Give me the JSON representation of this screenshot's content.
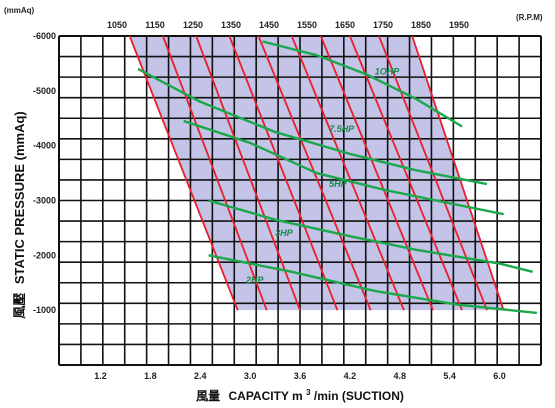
{
  "chart_data": {
    "type": "line",
    "y_unit_label": "(mmAq)",
    "rpm_unit_label": "(R.P.M)",
    "ylabel_prefix": "風壓",
    "ylabel": "STATIC PRESSURE (mmAq)",
    "xlabel_prefix": "風量",
    "xlabel": "CAPACITY m",
    "xlabel_sup": "3",
    "xlabel_suffix": "/min (SUCTION)",
    "xlim": [
      0.7,
      6.5
    ],
    "ylim": [
      0,
      -6000
    ],
    "x_ticks": [
      "1.2",
      "1.8",
      "2.4",
      "3.0",
      "3.6",
      "4.2",
      "4.8",
      "5.4",
      "6.0"
    ],
    "y_ticks": [
      "-6000",
      "-5000",
      "-4000",
      "-3000",
      "-2000",
      "-1000"
    ],
    "grid": true,
    "rpm_series": [
      {
        "name": "1050",
        "points": [
          [
            1.55,
            -6000
          ],
          [
            2.85,
            -1000
          ]
        ]
      },
      {
        "name": "1150",
        "points": [
          [
            1.95,
            -6000
          ],
          [
            3.2,
            -1000
          ]
        ]
      },
      {
        "name": "1250",
        "points": [
          [
            2.35,
            -6000
          ],
          [
            3.6,
            -1000
          ]
        ]
      },
      {
        "name": "1350",
        "points": [
          [
            2.75,
            -6000
          ],
          [
            4.05,
            -1000
          ]
        ]
      },
      {
        "name": "1450",
        "points": [
          [
            3.1,
            -6000
          ],
          [
            4.45,
            -1000
          ]
        ]
      },
      {
        "name": "1550",
        "points": [
          [
            3.5,
            -6000
          ],
          [
            4.85,
            -1000
          ]
        ]
      },
      {
        "name": "1650",
        "points": [
          [
            3.85,
            -6000
          ],
          [
            5.2,
            -1000
          ]
        ]
      },
      {
        "name": "1750",
        "points": [
          [
            4.2,
            -6000
          ],
          [
            5.55,
            -1000
          ]
        ]
      },
      {
        "name": "1850",
        "points": [
          [
            4.55,
            -6000
          ],
          [
            5.85,
            -1000
          ]
        ]
      },
      {
        "name": "1950",
        "points": [
          [
            4.95,
            -6000
          ],
          [
            6.05,
            -1000
          ]
        ]
      }
    ],
    "hp_series": [
      {
        "name": "1OHP",
        "points": [
          [
            3.15,
            -5900
          ],
          [
            3.8,
            -5650
          ],
          [
            4.4,
            -5300
          ],
          [
            5.0,
            -4850
          ],
          [
            5.55,
            -4350
          ]
        ]
      },
      {
        "name": "7.5HP",
        "points": [
          [
            1.65,
            -5400
          ],
          [
            2.4,
            -4800
          ],
          [
            3.3,
            -4250
          ],
          [
            4.2,
            -3850
          ],
          [
            5.0,
            -3550
          ],
          [
            5.85,
            -3300
          ]
        ]
      },
      {
        "name": "5HP",
        "points": [
          [
            2.2,
            -4450
          ],
          [
            3.0,
            -4050
          ],
          [
            3.8,
            -3500
          ],
          [
            4.6,
            -3200
          ],
          [
            5.4,
            -2950
          ],
          [
            6.05,
            -2750
          ]
        ]
      },
      {
        "name": "3HP",
        "points": [
          [
            2.5,
            -3000
          ],
          [
            3.3,
            -2650
          ],
          [
            4.2,
            -2350
          ],
          [
            5.0,
            -2100
          ],
          [
            6.0,
            -1850
          ],
          [
            6.4,
            -1700
          ]
        ]
      },
      {
        "name": "2HP",
        "points": [
          [
            2.5,
            -2000
          ],
          [
            3.5,
            -1700
          ],
          [
            4.5,
            -1350
          ],
          [
            5.5,
            -1100
          ],
          [
            6.45,
            -950
          ]
        ]
      }
    ],
    "hp_label_positions": [
      {
        "name": "1OHP",
        "x": 4.5,
        "y": -5300
      },
      {
        "name": "7.5HP",
        "x": 3.95,
        "y": -4250
      },
      {
        "name": "5HP",
        "x": 3.95,
        "y": -3250
      },
      {
        "name": "3HP",
        "x": 3.3,
        "y": -2350
      },
      {
        "name": "2HP",
        "x": 2.95,
        "y": -1500
      }
    ],
    "region": [
      [
        1.55,
        -6000
      ],
      [
        4.95,
        -6000
      ],
      [
        6.05,
        -1000
      ],
      [
        2.85,
        -1000
      ]
    ],
    "colors": {
      "rpm_line": "#e8202a",
      "hp_line": "#1aa84a",
      "hp_text": "#16884a",
      "region_fill": "#c4c4e8",
      "grid": "#111111"
    }
  }
}
